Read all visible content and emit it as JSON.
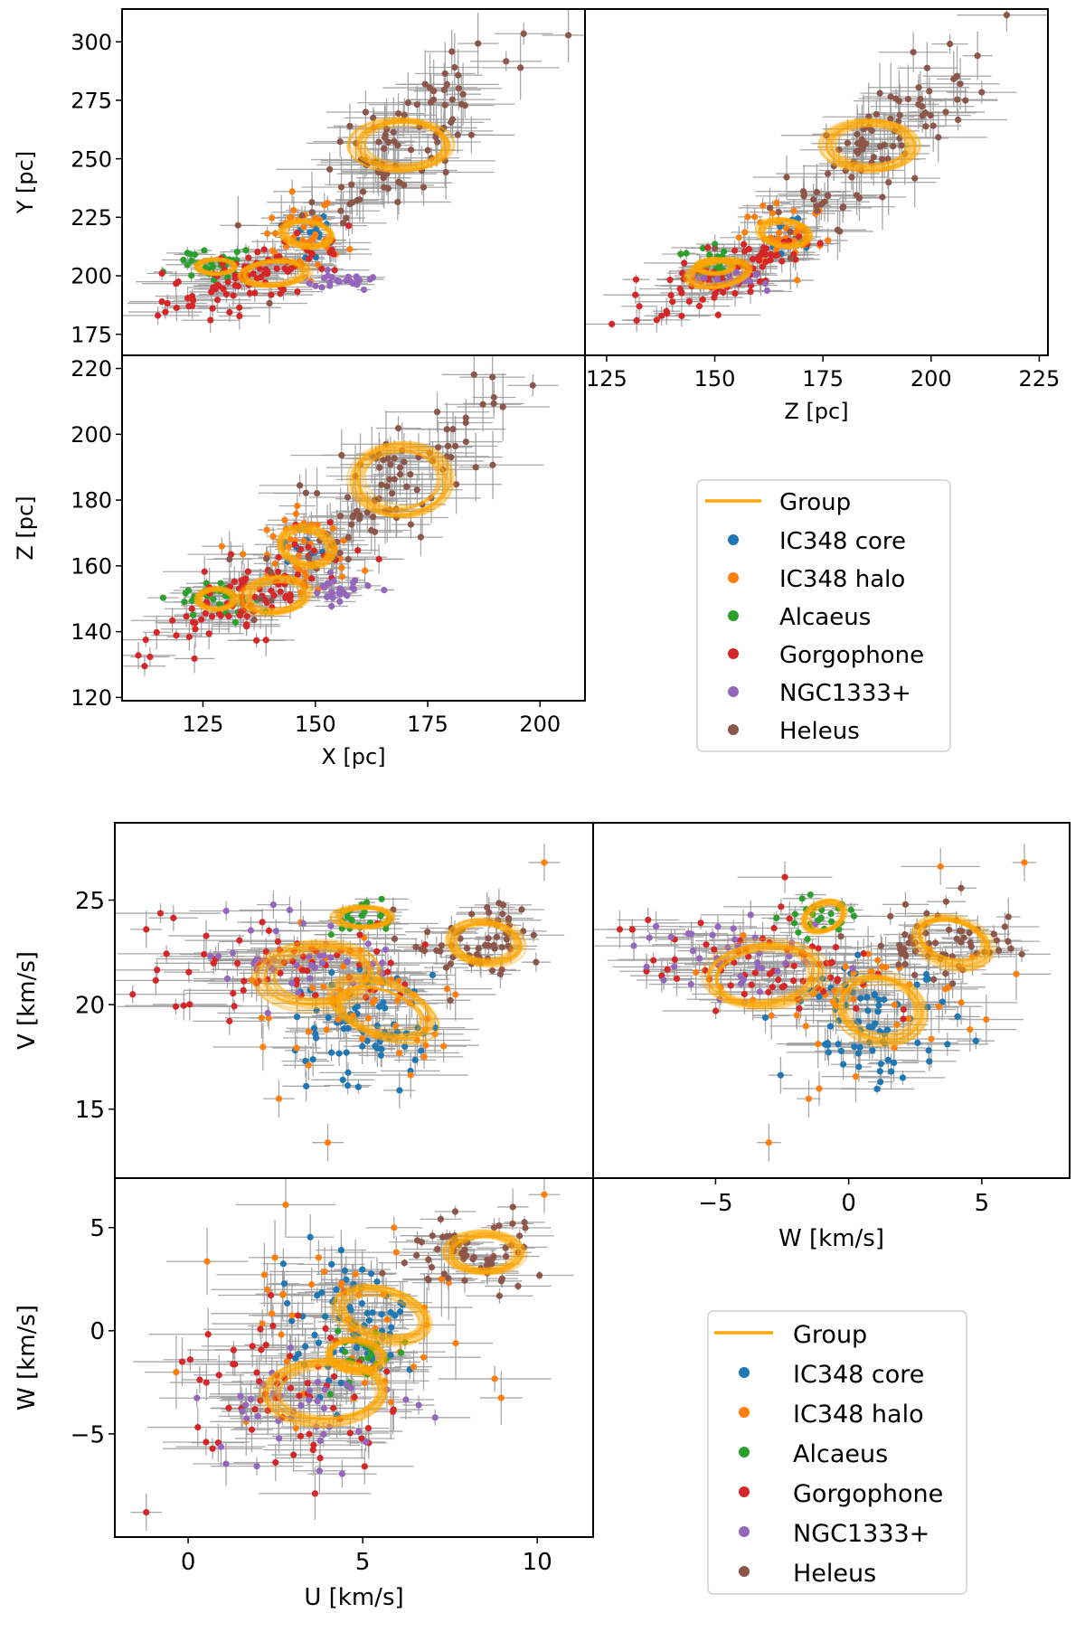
{
  "colors": {
    "group": "#FFA500",
    "ic348_core": "#1f77b4",
    "ic348_halo": "#ff7f0e",
    "alcaeus": "#2ca02c",
    "gorgophone": "#d62728",
    "ngc1333": "#9467bd",
    "heleus": "#8c564b",
    "errorbar": "#9a9a9a"
  },
  "legend": {
    "items": [
      "Group",
      "IC348 core",
      "IC348 halo",
      "Alcaeus",
      "Gorgophone",
      "NGC1333+",
      "Heleus"
    ]
  },
  "chart_data": [
    {
      "id": "XY",
      "type": "scatter",
      "title": "",
      "xlabel": "",
      "ylabel": "Y [pc]",
      "xlim": [
        107,
        210
      ],
      "ylim": [
        166,
        314
      ],
      "xticks": [],
      "yticks": [
        175,
        200,
        225,
        250,
        275,
        300
      ],
      "xaxis": "X",
      "yaxis": "Y",
      "grid": false,
      "groups": [
        {
          "name": "Group",
          "rings": [
            [
              169,
              256,
              10,
              10,
              45
            ],
            [
              148,
              218,
              5,
              6,
              45
            ],
            [
              141,
              201,
              7,
              5,
              15
            ],
            [
              128,
              204,
              4,
              3,
              0
            ]
          ]
        },
        {
          "name": "IC348 core",
          "clusters": [
            [
              148,
              218,
              3,
              5,
              12,
              0
            ]
          ]
        },
        {
          "name": "IC348 halo",
          "clusters": [
            [
              148,
              216,
              5,
              8,
              40,
              0
            ]
          ]
        },
        {
          "name": "Alcaeus",
          "clusters": [
            [
              127,
              205,
              5,
              4,
              30,
              0
            ]
          ]
        },
        {
          "name": "Gorgophone",
          "clusters": [
            [
              137,
              200,
              10,
              8,
              95,
              0.7
            ]
          ]
        },
        {
          "name": "NGC1333+",
          "clusters": [
            [
              155,
              198,
              4,
              2,
              25,
              0
            ]
          ]
        },
        {
          "name": "Heleus",
          "clusters": [
            [
              167,
              255,
              12,
              20,
              95,
              0.8
            ]
          ]
        }
      ]
    },
    {
      "id": "ZY",
      "type": "scatter",
      "title": "",
      "xlabel": "Z [pc]",
      "ylabel": "",
      "xlim": [
        120,
        227
      ],
      "ylim": [
        166,
        314
      ],
      "xticks": [
        125,
        150,
        175,
        200,
        225
      ],
      "yticks": [],
      "xaxis": "Z",
      "yaxis": "Y",
      "grid": false,
      "groups": [
        {
          "name": "Group",
          "rings": [
            [
              186,
              256,
              10,
              10,
              45
            ],
            [
              166,
              218,
              5,
              6,
              45
            ],
            [
              151,
              201,
              7,
              5,
              30
            ],
            [
              150,
              204,
              4,
              3,
              0
            ]
          ]
        },
        {
          "name": "IC348 core",
          "clusters": [
            [
              166,
              218,
              3,
              5,
              12,
              0
            ]
          ]
        },
        {
          "name": "IC348 halo",
          "clusters": [
            [
              166,
              216,
              5,
              8,
              40,
              0
            ]
          ]
        },
        {
          "name": "Alcaeus",
          "clusters": [
            [
              150,
              205,
              5,
              4,
              30,
              0
            ]
          ]
        },
        {
          "name": "Gorgophone",
          "clusters": [
            [
              151,
              200,
              10,
              8,
              95,
              0.7
            ]
          ]
        },
        {
          "name": "NGC1333+",
          "clusters": [
            [
              154,
              198,
              4,
              2,
              25,
              0
            ]
          ]
        },
        {
          "name": "Heleus",
          "clusters": [
            [
              186,
              255,
              12,
              20,
              95,
              0.8
            ]
          ]
        }
      ]
    },
    {
      "id": "XZ",
      "type": "scatter",
      "title": "",
      "xlabel": "X [pc]",
      "ylabel": "Z [pc]",
      "xlim": [
        107,
        210
      ],
      "ylim": [
        119,
        224
      ],
      "xticks": [
        125,
        150,
        175,
        200
      ],
      "yticks": [
        120,
        140,
        160,
        180,
        200,
        220
      ],
      "xaxis": "X",
      "yaxis": "Z",
      "grid": false,
      "groups": [
        {
          "name": "Group",
          "rings": [
            [
              169,
              186,
              10,
              10,
              45
            ],
            [
              148,
              166,
              5,
              6,
              45
            ],
            [
              141,
              151,
              7,
              5,
              15
            ],
            [
              128,
              150,
              4,
              3,
              0
            ]
          ]
        },
        {
          "name": "IC348 core",
          "clusters": [
            [
              148,
              166,
              3,
              4,
              12,
              0
            ]
          ]
        },
        {
          "name": "IC348 halo",
          "clusters": [
            [
              148,
              165,
              5,
              6,
              40,
              0
            ]
          ]
        },
        {
          "name": "Alcaeus",
          "clusters": [
            [
              127,
              150,
              5,
              3,
              30,
              0
            ]
          ]
        },
        {
          "name": "Gorgophone",
          "clusters": [
            [
              137,
              151,
              10,
              8,
              95,
              0.7
            ]
          ]
        },
        {
          "name": "NGC1333+",
          "clusters": [
            [
              155,
              152,
              4,
              2,
              25,
              0
            ]
          ]
        },
        {
          "name": "Heleus",
          "clusters": [
            [
              167,
              185,
              12,
              14,
              95,
              0.8
            ]
          ]
        }
      ]
    },
    {
      "id": "UV",
      "type": "scatter",
      "title": "",
      "xlabel": "",
      "ylabel": "V [km/s]",
      "xlim": [
        -2.1,
        11.6
      ],
      "ylim": [
        11.7,
        28.7
      ],
      "xticks": [],
      "yticks": [
        15,
        20,
        25
      ],
      "xaxis": "U",
      "yaxis": "V",
      "grid": false,
      "groups": [
        {
          "name": "Group",
          "rings": [
            [
              3.7,
              21.4,
              1.6,
              1.4,
              20
            ],
            [
              5.6,
              19.8,
              1.0,
              1.6,
              45
            ],
            [
              8.5,
              23.0,
              0.9,
              1.0,
              45
            ],
            [
              5.0,
              24.2,
              0.8,
              0.5,
              0
            ]
          ]
        },
        {
          "name": "IC348 core",
          "clusters": [
            [
              5.0,
              19.0,
              1.0,
              1.2,
              75,
              0
            ]
          ]
        },
        {
          "name": "IC348 halo",
          "clusters": [
            [
              5.0,
              20.0,
              1.8,
              2.0,
              45,
              0
            ]
          ]
        },
        {
          "name": "Alcaeus",
          "clusters": [
            [
              5.0,
              24.2,
              0.8,
              0.5,
              25,
              0
            ]
          ]
        },
        {
          "name": "Gorgophone",
          "clusters": [
            [
              3.0,
              21.8,
              1.8,
              1.2,
              70,
              0
            ]
          ]
        },
        {
          "name": "NGC1333+",
          "clusters": [
            [
              3.2,
              22.3,
              1.5,
              1.0,
              40,
              0
            ]
          ]
        },
        {
          "name": "Heleus",
          "clusters": [
            [
              8.3,
              23.0,
              1.0,
              1.0,
              60,
              0
            ]
          ]
        }
      ],
      "outliers": [
        {
          "x": -1.2,
          "y": 23.6,
          "group": "Gorgophone"
        },
        {
          "x": 10.2,
          "y": 26.8,
          "group": "IC348 halo"
        },
        {
          "x": 2.6,
          "y": 15.5,
          "group": "IC348 halo"
        },
        {
          "x": 4.0,
          "y": 13.4,
          "group": "IC348 halo"
        }
      ]
    },
    {
      "id": "WV",
      "type": "scatter",
      "title": "",
      "xlabel": "W [km/s]",
      "ylabel": "",
      "xlim": [
        -9.6,
        8.3
      ],
      "ylim": [
        11.7,
        28.7
      ],
      "xticks": [
        -5,
        0,
        5
      ],
      "yticks": [],
      "xaxis": "W",
      "yaxis": "V",
      "grid": false,
      "groups": [
        {
          "name": "Group",
          "rings": [
            [
              -3.2,
              21.4,
              2.0,
              1.4,
              10
            ],
            [
              1.2,
              19.8,
              1.4,
              1.6,
              45
            ],
            [
              3.9,
              23.0,
              1.0,
              1.4,
              60
            ],
            [
              -0.9,
              24.2,
              0.8,
              0.6,
              45
            ]
          ]
        },
        {
          "name": "IC348 core",
          "clusters": [
            [
              0.8,
              19.0,
              1.6,
              1.2,
              75,
              0
            ]
          ]
        },
        {
          "name": "IC348 halo",
          "clusters": [
            [
              0.8,
              20.0,
              2.2,
              2.0,
              45,
              0
            ]
          ]
        },
        {
          "name": "Alcaeus",
          "clusters": [
            [
              -0.9,
              24.2,
              0.8,
              0.5,
              25,
              0
            ]
          ]
        },
        {
          "name": "Gorgophone",
          "clusters": [
            [
              -3.2,
              21.8,
              2.2,
              1.2,
              70,
              0
            ]
          ]
        },
        {
          "name": "NGC1333+",
          "clusters": [
            [
              -4.2,
              22.3,
              2.0,
              1.0,
              40,
              0
            ]
          ]
        },
        {
          "name": "Heleus",
          "clusters": [
            [
              3.7,
              23.0,
              1.3,
              1.0,
              60,
              0
            ]
          ]
        }
      ],
      "outliers": [
        {
          "x": -8.6,
          "y": 23.6,
          "group": "Gorgophone"
        },
        {
          "x": 6.6,
          "y": 26.8,
          "group": "IC348 halo"
        },
        {
          "x": -1.5,
          "y": 15.5,
          "group": "IC348 halo"
        },
        {
          "x": -3.0,
          "y": 13.4,
          "group": "IC348 halo"
        },
        {
          "x": 6.0,
          "y": 24.2,
          "group": "Heleus"
        }
      ]
    },
    {
      "id": "UW",
      "type": "scatter",
      "title": "",
      "xlabel": "U [km/s]",
      "ylabel": "W [km/s]",
      "xlim": [
        -2.1,
        11.6
      ],
      "ylim": [
        -10.0,
        7.4
      ],
      "xticks": [
        0,
        5,
        10
      ],
      "yticks": [
        -5,
        0,
        5
      ],
      "xaxis": "U",
      "yaxis": "W",
      "grid": false,
      "groups": [
        {
          "name": "Group",
          "rings": [
            [
              4.0,
              -3.0,
              1.6,
              1.4,
              10
            ],
            [
              5.6,
              0.8,
              1.0,
              1.4,
              45
            ],
            [
              8.5,
              3.8,
              1.0,
              0.9,
              0
            ],
            [
              4.8,
              -1.2,
              0.7,
              0.8,
              45
            ]
          ]
        },
        {
          "name": "IC348 core",
          "clusters": [
            [
              4.6,
              0.6,
              1.0,
              1.6,
              70,
              0
            ]
          ]
        },
        {
          "name": "IC348 halo",
          "clusters": [
            [
              4.8,
              0.2,
              1.8,
              2.5,
              45,
              0
            ]
          ]
        },
        {
          "name": "Alcaeus",
          "clusters": [
            [
              5.0,
              -1.2,
              0.7,
              0.8,
              25,
              0
            ]
          ]
        },
        {
          "name": "Gorgophone",
          "clusters": [
            [
              3.0,
              -3.0,
              1.8,
              1.8,
              70,
              0
            ]
          ]
        },
        {
          "name": "NGC1333+",
          "clusters": [
            [
              3.2,
              -4.2,
              1.5,
              1.5,
              40,
              0
            ]
          ]
        },
        {
          "name": "Heleus",
          "clusters": [
            [
              8.3,
              3.7,
              1.0,
              0.8,
              60,
              0
            ]
          ]
        }
      ],
      "outliers": [
        {
          "x": -1.2,
          "y": -8.8,
          "group": "Gorgophone"
        },
        {
          "x": 10.2,
          "y": 6.6,
          "group": "IC348 halo"
        },
        {
          "x": 9.3,
          "y": 6.0,
          "group": "Heleus"
        }
      ]
    }
  ]
}
